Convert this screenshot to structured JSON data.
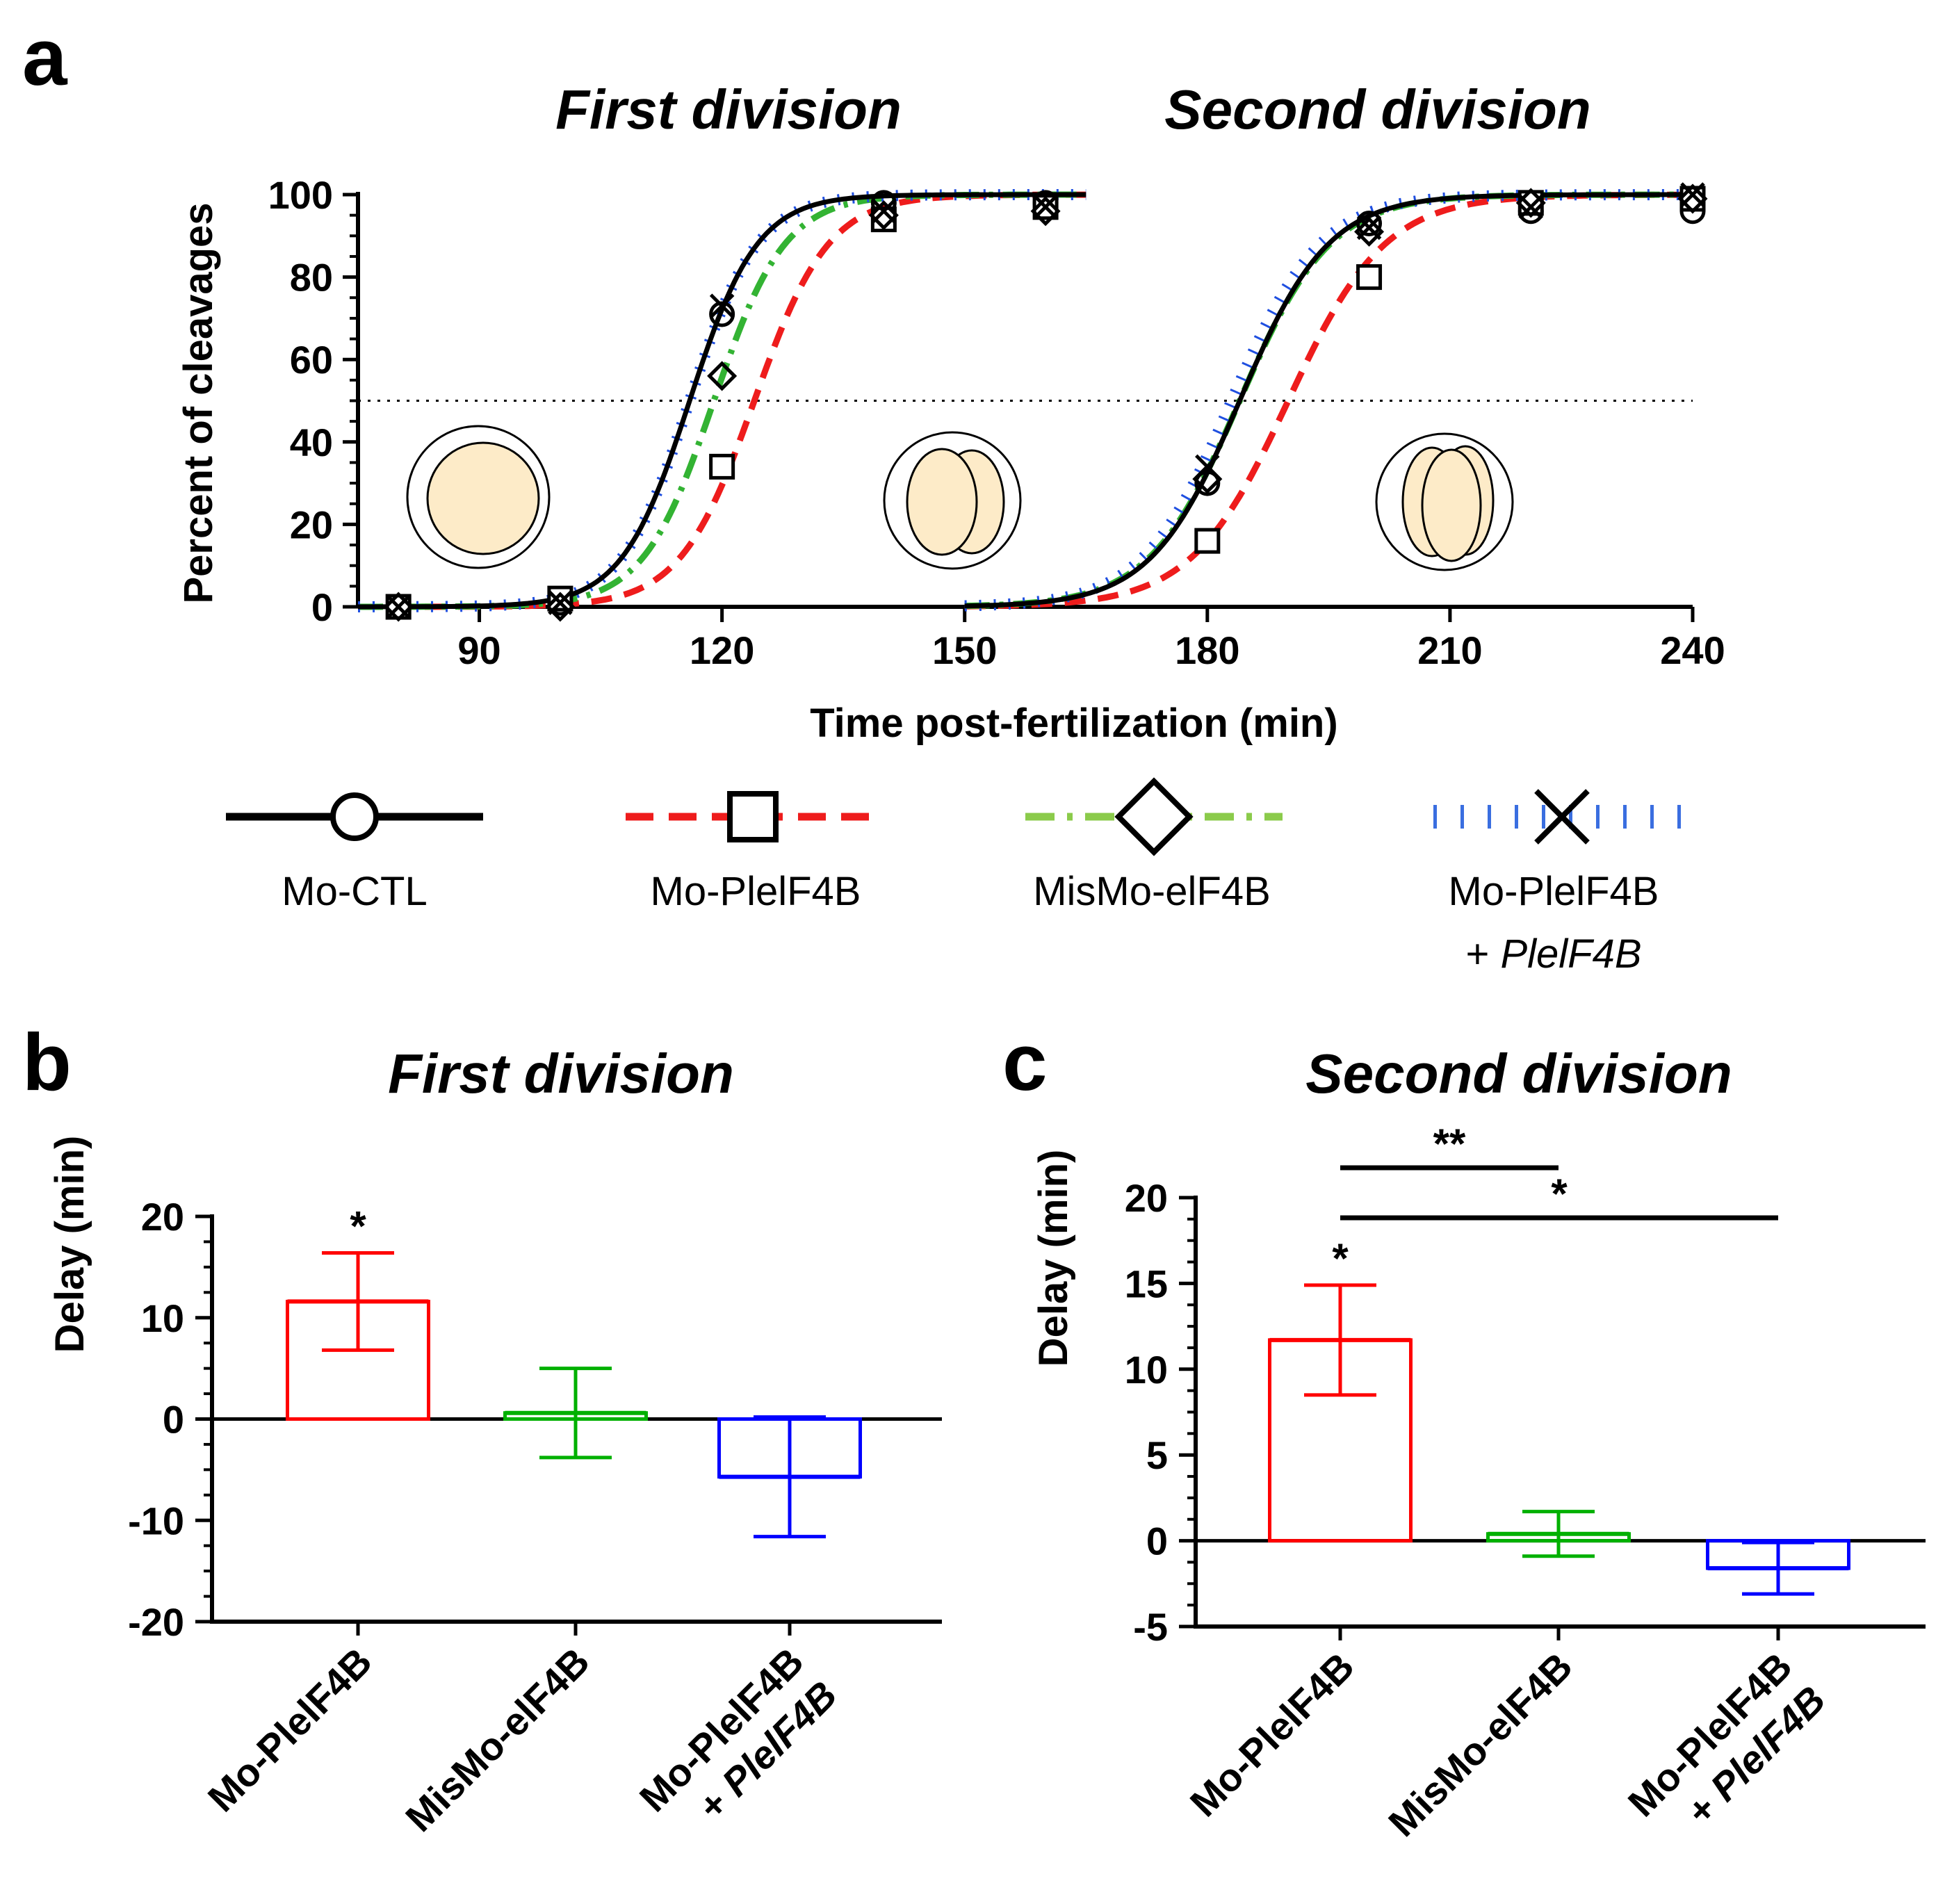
{
  "panels": {
    "a": "a",
    "b": "b",
    "c": "c"
  },
  "chart_data": [
    {
      "id": "a",
      "type": "line",
      "titles": [
        "First division",
        "Second division"
      ],
      "xlabel": "Time post-fertilization (min)",
      "ylabel": "Percent of cleavages",
      "xlim": [
        75,
        240
      ],
      "ylim": [
        0,
        100
      ],
      "xticks": [
        90,
        120,
        150,
        180,
        210,
        240
      ],
      "yticks": [
        0,
        20,
        40,
        60,
        80,
        100
      ],
      "threshold": 50,
      "series": [
        {
          "name": "Mo-CTL",
          "color": "#000000",
          "dash": "solid",
          "marker": "circle",
          "midpoints": [
            116,
            184
          ],
          "slopes": [
            4.2,
            5.5
          ],
          "points": {
            "x": [
              80,
              100,
              120,
              140,
              160,
              180,
              200,
              220,
              240
            ],
            "y": [
              0,
              1,
              71,
              98,
              98,
              30,
              93,
              96,
              96
            ]
          }
        },
        {
          "name": "Mo-PlelF4B",
          "color": "#ee1c1c",
          "dash": "dashed",
          "marker": "square",
          "midpoints": [
            124,
            190
          ],
          "slopes": [
            4.6,
            6.0
          ],
          "points": {
            "x": [
              80,
              100,
              120,
              140,
              160,
              180,
              200,
              220,
              240
            ],
            "y": [
              0,
              2,
              34,
              94,
              97,
              16,
              80,
              98,
              99
            ]
          }
        },
        {
          "name": "MisMo-elF4B",
          "color": "#33b333",
          "dash": "dashdot",
          "marker": "diamond",
          "midpoints": [
            119,
            184
          ],
          "slopes": [
            4.4,
            5.6
          ],
          "points": {
            "x": [
              80,
              100,
              120,
              140,
              160,
              180,
              200,
              220,
              240
            ],
            "y": [
              0,
              0,
              56,
              95,
              96,
              31,
              91,
              98,
              99
            ]
          }
        },
        {
          "name": "Mo-PlelF4B",
          "name_line2_prefix": "+ ",
          "name_line2_italic": "PlelF4B",
          "color": "#1f4fe0",
          "dash": "dotted",
          "marker": "cross",
          "midpoints": [
            116,
            183
          ],
          "slopes": [
            4.2,
            5.5
          ],
          "points": {
            "x": [
              80,
              100,
              120,
              140,
              160,
              180,
              200,
              220,
              240
            ],
            "y": [
              0,
              1,
              73,
              96,
              97,
              34,
              92,
              97,
              100
            ]
          }
        }
      ],
      "embryo_icons": [
        "one-cell",
        "two-cell",
        "four-cell"
      ]
    },
    {
      "id": "b",
      "type": "bar",
      "title": "First division",
      "ylabel": "Delay (min)",
      "ylim": [
        -20,
        20
      ],
      "yticks": [
        -20,
        -10,
        0,
        10,
        20
      ],
      "categories": [
        {
          "line1": "Mo-PlelF4B",
          "line2_prefix": "",
          "line2_italic": ""
        },
        {
          "line1": "MisMo-elF4B",
          "line2_prefix": "",
          "line2_italic": ""
        },
        {
          "line1": "Mo-PlelF4B",
          "line2_prefix": "+ ",
          "line2_italic": "PlelF4B"
        }
      ],
      "values": [
        11.6,
        0.6,
        -5.7
      ],
      "errors": [
        4.8,
        4.4,
        5.9
      ],
      "colors": [
        "#ff0000",
        "#00b000",
        "#0000ff"
      ],
      "significance": [
        {
          "bar": 0,
          "label": "*"
        }
      ],
      "brackets": []
    },
    {
      "id": "c",
      "type": "bar",
      "title": "Second division",
      "ylabel": "Delay (min)",
      "ylim": [
        -5,
        20
      ],
      "yticks": [
        -5,
        0,
        5,
        10,
        15,
        20
      ],
      "categories": [
        {
          "line1": "Mo-PlelF4B",
          "line2_prefix": "",
          "line2_italic": ""
        },
        {
          "line1": "MisMo-elF4B",
          "line2_prefix": "",
          "line2_italic": ""
        },
        {
          "line1": "Mo-PlelF4B",
          "line2_prefix": "+ ",
          "line2_italic": "PlelF4B"
        }
      ],
      "values": [
        11.7,
        0.4,
        -1.6
      ],
      "errors": [
        3.2,
        1.3,
        1.5
      ],
      "colors": [
        "#ff0000",
        "#00b000",
        "#0000ff"
      ],
      "significance": [
        {
          "bar": 0,
          "label": "*"
        }
      ],
      "brackets": [
        {
          "from": 0,
          "to": 1,
          "label": "**"
        },
        {
          "from": 0,
          "to": 2,
          "label": "*"
        }
      ]
    }
  ]
}
